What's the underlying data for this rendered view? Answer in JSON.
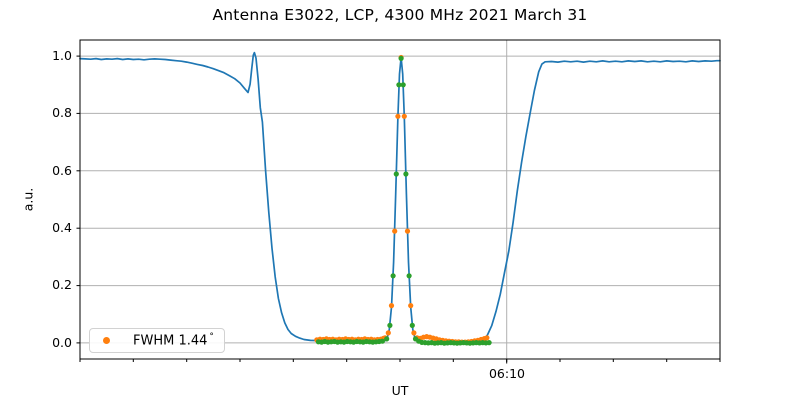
{
  "figure": {
    "title": "Antenna E3022, LCP, 4300 MHz 2021 March 31"
  },
  "chart_data": {
    "type": "line+scatter",
    "title": "Antenna E3022, LCP, 4300 MHz 2021 March 31",
    "xlabel": "UT",
    "ylabel": "a.u.",
    "grid": true,
    "x_axis": {
      "axis_label": "UT",
      "unit": "minutes from left edge",
      "range_minutes": [
        0,
        60
      ],
      "minor_ticks_t": [
        0,
        5,
        10,
        15,
        20,
        25,
        30,
        35,
        40,
        45,
        50,
        55,
        60
      ],
      "major_tick_t": 40,
      "major_tick_label": "06:10"
    },
    "y_axis": {
      "label": "a.u.",
      "ylim": [
        -0.056,
        1.056
      ],
      "tick_values": [
        1.0,
        0.8,
        0.6,
        0.4,
        0.2,
        0.0
      ],
      "tick_labels": [
        "1.0",
        "0.8",
        "0.6",
        "0.4",
        "0.2",
        "0.0"
      ]
    },
    "legend": {
      "text": "FWHM 1.44",
      "unit": "°",
      "marker_color": "#ff7f0e",
      "position": "lower left"
    },
    "colors": {
      "line": "#1f77b4",
      "scatter_data": "#ff7f0e",
      "scatter_fit": "#2ca02c",
      "grid": "#b0b0b0",
      "spine": "#000000"
    },
    "series": {
      "line": {
        "name": "beam-response-curve",
        "type": "line",
        "color": "#1f77b4",
        "width": 1.7,
        "points": [
          [
            0,
            0.991
          ],
          [
            0.5,
            0.99
          ],
          [
            1,
            0.989
          ],
          [
            1.5,
            0.991
          ],
          [
            2,
            0.988
          ],
          [
            2.5,
            0.99
          ],
          [
            3,
            0.989
          ],
          [
            3.5,
            0.991
          ],
          [
            4,
            0.988
          ],
          [
            4.5,
            0.99
          ],
          [
            5,
            0.988
          ],
          [
            5.5,
            0.989
          ],
          [
            6,
            0.987
          ],
          [
            6.5,
            0.989
          ],
          [
            7,
            0.99
          ],
          [
            7.5,
            0.989
          ],
          [
            8,
            0.988
          ],
          [
            8.5,
            0.986
          ],
          [
            9,
            0.984
          ],
          [
            9.5,
            0.982
          ],
          [
            10,
            0.979
          ],
          [
            10.5,
            0.975
          ],
          [
            11,
            0.971
          ],
          [
            11.5,
            0.967
          ],
          [
            12,
            0.962
          ],
          [
            12.5,
            0.956
          ],
          [
            13,
            0.949
          ],
          [
            13.5,
            0.942
          ],
          [
            14,
            0.932
          ],
          [
            14.5,
            0.921
          ],
          [
            15,
            0.906
          ],
          [
            15.4,
            0.888
          ],
          [
            15.75,
            0.873
          ],
          [
            15.95,
            0.902
          ],
          [
            16.1,
            0.955
          ],
          [
            16.25,
            1.003
          ],
          [
            16.35,
            1.012
          ],
          [
            16.5,
            0.993
          ],
          [
            16.7,
            0.92
          ],
          [
            16.9,
            0.82
          ],
          [
            17.1,
            0.77
          ],
          [
            17.4,
            0.6
          ],
          [
            17.7,
            0.455
          ],
          [
            18,
            0.33
          ],
          [
            18.3,
            0.23
          ],
          [
            18.6,
            0.155
          ],
          [
            18.9,
            0.105
          ],
          [
            19.2,
            0.07
          ],
          [
            19.5,
            0.047
          ],
          [
            19.8,
            0.033
          ],
          [
            20.2,
            0.023
          ],
          [
            20.6,
            0.017
          ],
          [
            21,
            0.012
          ],
          [
            21.6,
            0.009
          ],
          [
            22.4,
            0.008
          ],
          [
            23.5,
            0.007
          ],
          [
            25,
            0.007
          ],
          [
            26.5,
            0.006
          ],
          [
            28,
            0.006
          ],
          [
            28.4,
            0.006
          ],
          [
            28.6,
            0.008
          ],
          [
            28.8,
            0.017
          ],
          [
            29,
            0.047
          ],
          [
            29.2,
            0.125
          ],
          [
            29.4,
            0.281
          ],
          [
            29.6,
            0.52
          ],
          [
            29.8,
            0.788
          ],
          [
            29.95,
            0.938
          ],
          [
            30.1,
            0.995
          ],
          [
            30.25,
            0.938
          ],
          [
            30.4,
            0.788
          ],
          [
            30.6,
            0.52
          ],
          [
            30.8,
            0.281
          ],
          [
            31,
            0.125
          ],
          [
            31.2,
            0.047
          ],
          [
            31.4,
            0.017
          ],
          [
            31.6,
            0.008
          ],
          [
            31.8,
            0.005
          ],
          [
            32.2,
            0.003
          ],
          [
            33,
            0.002
          ],
          [
            34,
            0.002
          ],
          [
            35,
            0.002
          ],
          [
            36,
            0.002
          ],
          [
            36.8,
            0.002
          ],
          [
            37.4,
            0.004
          ],
          [
            37.8,
            0.01
          ],
          [
            38.2,
            0.028
          ],
          [
            38.6,
            0.06
          ],
          [
            39,
            0.11
          ],
          [
            39.4,
            0.17
          ],
          [
            39.8,
            0.245
          ],
          [
            40.2,
            0.32
          ],
          [
            40.6,
            0.42
          ],
          [
            41,
            0.53
          ],
          [
            41.4,
            0.63
          ],
          [
            41.8,
            0.72
          ],
          [
            42.2,
            0.8
          ],
          [
            42.6,
            0.88
          ],
          [
            43,
            0.945
          ],
          [
            43.3,
            0.972
          ],
          [
            43.6,
            0.98
          ],
          [
            44.2,
            0.981
          ],
          [
            44.8,
            0.979
          ],
          [
            45.4,
            0.982
          ],
          [
            46,
            0.98
          ],
          [
            46.6,
            0.982
          ],
          [
            47.2,
            0.979
          ],
          [
            47.8,
            0.982
          ],
          [
            48.4,
            0.98
          ],
          [
            49,
            0.983
          ],
          [
            49.6,
            0.98
          ],
          [
            50.2,
            0.982
          ],
          [
            50.8,
            0.98
          ],
          [
            51.4,
            0.983
          ],
          [
            52,
            0.981
          ],
          [
            52.6,
            0.983
          ],
          [
            53.2,
            0.98
          ],
          [
            53.8,
            0.982
          ],
          [
            54.4,
            0.98
          ],
          [
            55,
            0.983
          ],
          [
            55.6,
            0.981
          ],
          [
            56.2,
            0.982
          ],
          [
            56.8,
            0.98
          ],
          [
            57.4,
            0.983
          ],
          [
            58,
            0.981
          ],
          [
            58.6,
            0.983
          ],
          [
            59.2,
            0.982
          ],
          [
            59.7,
            0.984
          ],
          [
            60,
            0.984
          ]
        ]
      },
      "scatter_orange": {
        "name": "measured-points",
        "type": "scatter",
        "color": "#ff7f0e",
        "radius": 2.6,
        "points": [
          [
            22.2,
            0.011
          ],
          [
            22.5,
            0.013
          ],
          [
            22.8,
            0.012
          ],
          [
            23.1,
            0.014
          ],
          [
            23.4,
            0.012
          ],
          [
            23.7,
            0.013
          ],
          [
            24,
            0.011
          ],
          [
            24.3,
            0.013
          ],
          [
            24.6,
            0.012
          ],
          [
            24.9,
            0.014
          ],
          [
            25.2,
            0.012
          ],
          [
            25.5,
            0.013
          ],
          [
            25.8,
            0.011
          ],
          [
            26.1,
            0.013
          ],
          [
            26.4,
            0.012
          ],
          [
            26.7,
            0.014
          ],
          [
            27,
            0.012
          ],
          [
            27.3,
            0.013
          ],
          [
            27.6,
            0.011
          ],
          [
            27.9,
            0.012
          ],
          [
            28.2,
            0.013
          ],
          [
            28.45,
            0.016
          ],
          [
            28.6,
            0.018
          ],
          [
            28.9,
            0.035
          ],
          [
            29.2,
            0.13
          ],
          [
            29.5,
            0.39
          ],
          [
            29.8,
            0.79
          ],
          [
            30.1,
            0.995
          ],
          [
            30.4,
            0.79
          ],
          [
            30.7,
            0.39
          ],
          [
            31,
            0.13
          ],
          [
            31.3,
            0.035
          ],
          [
            31.6,
            0.018
          ],
          [
            31.9,
            0.016
          ],
          [
            32.2,
            0.02
          ],
          [
            32.5,
            0.022
          ],
          [
            32.8,
            0.02
          ],
          [
            33.1,
            0.017
          ],
          [
            33.4,
            0.014
          ],
          [
            33.7,
            0.011
          ],
          [
            34,
            0.009
          ],
          [
            34.3,
            0.007
          ],
          [
            34.6,
            0.006
          ],
          [
            34.9,
            0.005
          ],
          [
            35.2,
            0.004
          ],
          [
            35.5,
            0.004
          ],
          [
            35.8,
            0.003
          ],
          [
            36.1,
            0.003
          ],
          [
            36.4,
            0.004
          ],
          [
            36.7,
            0.005
          ],
          [
            37,
            0.007
          ],
          [
            37.3,
            0.009
          ],
          [
            37.6,
            0.012
          ],
          [
            37.9,
            0.015
          ],
          [
            38.15,
            0.018
          ]
        ]
      },
      "scatter_green": {
        "name": "gaussian-fit-points",
        "type": "scatter",
        "color": "#2ca02c",
        "radius": 2.6,
        "points": [
          [
            22.35,
            0.004
          ],
          [
            22.65,
            0.003
          ],
          [
            22.95,
            0.005
          ],
          [
            23.25,
            0.003
          ],
          [
            23.55,
            0.004
          ],
          [
            23.85,
            0.005
          ],
          [
            24.15,
            0.003
          ],
          [
            24.45,
            0.004
          ],
          [
            24.75,
            0.003
          ],
          [
            25.05,
            0.005
          ],
          [
            25.35,
            0.004
          ],
          [
            25.65,
            0.003
          ],
          [
            25.95,
            0.005
          ],
          [
            26.25,
            0.004
          ],
          [
            26.55,
            0.003
          ],
          [
            26.85,
            0.005
          ],
          [
            27.15,
            0.004
          ],
          [
            27.45,
            0.003
          ],
          [
            27.75,
            0.004
          ],
          [
            28.05,
            0.005
          ],
          [
            28.35,
            0.006
          ],
          [
            28.75,
            0.014
          ],
          [
            29.05,
            0.061
          ],
          [
            29.35,
            0.234
          ],
          [
            29.65,
            0.589
          ],
          [
            29.9,
            0.9
          ],
          [
            30.1,
            0.992
          ],
          [
            30.3,
            0.9
          ],
          [
            30.55,
            0.589
          ],
          [
            30.85,
            0.234
          ],
          [
            31.15,
            0.061
          ],
          [
            31.45,
            0.014
          ],
          [
            31.75,
            0.006
          ],
          [
            32.05,
            0.002
          ],
          [
            32.35,
            0.001
          ],
          [
            32.65,
            0
          ],
          [
            32.95,
            0.001
          ],
          [
            33.25,
            -0.001
          ],
          [
            33.55,
            0
          ],
          [
            33.85,
            0.001
          ],
          [
            34.15,
            -0.001
          ],
          [
            34.45,
            0
          ],
          [
            34.75,
            0.001
          ],
          [
            35.05,
            0
          ],
          [
            35.35,
            -0.001
          ],
          [
            35.65,
            0
          ],
          [
            35.95,
            0.001
          ],
          [
            36.25,
            0
          ],
          [
            36.55,
            -0.001
          ],
          [
            36.85,
            0
          ],
          [
            37.15,
            0.001
          ],
          [
            37.45,
            0
          ],
          [
            37.75,
            0.001
          ],
          [
            38.05,
            0
          ],
          [
            38.35,
            0.001
          ]
        ]
      }
    }
  }
}
